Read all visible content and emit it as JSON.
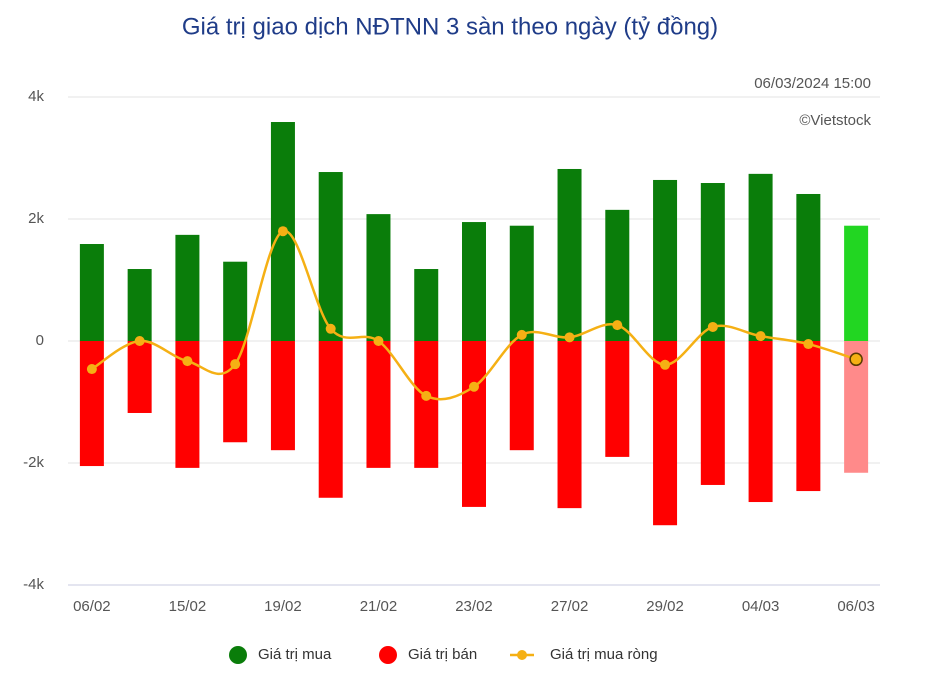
{
  "chart_data": {
    "type": "bar_line",
    "title": "Giá trị giao dịch NĐTNN 3 sàn theo ngày (tỷ đồng)",
    "timestamp": "06/03/2024 15:00",
    "source": "©Vietstock",
    "categories": [
      "06/02",
      null,
      "15/02",
      null,
      "19/02",
      null,
      "21/02",
      null,
      "23/02",
      null,
      "27/02",
      null,
      "29/02",
      null,
      "04/03",
      null,
      "06/03"
    ],
    "series": [
      {
        "name": "Giá trị mua",
        "type": "bar",
        "color": "#0a7d0a",
        "last_color": "#22d622",
        "values": [
          1590,
          1180,
          1740,
          1300,
          3590,
          2770,
          2080,
          1180,
          1950,
          1890,
          2820,
          2150,
          2640,
          2590,
          2740,
          2410,
          1890
        ]
      },
      {
        "name": "Giá trị bán",
        "type": "bar",
        "color": "#ff0000",
        "last_color": "#ff8a8a",
        "values": [
          -2050,
          -1180,
          -2080,
          -1660,
          -1790,
          -2570,
          -2080,
          -2080,
          -2720,
          -1790,
          -2740,
          -1900,
          -3020,
          -2360,
          -2640,
          -2460,
          -2160
        ]
      },
      {
        "name": "Giá trị mua ròng",
        "type": "line",
        "color": "#f5b014",
        "values": [
          -460,
          0,
          -330,
          -380,
          1800,
          200,
          0,
          -900,
          -750,
          100,
          60,
          260,
          -390,
          230,
          80,
          -50,
          -300
        ]
      }
    ],
    "ylim": [
      -4000,
      4000
    ],
    "yticks": [
      {
        "value": -4000,
        "label": "-4k"
      },
      {
        "value": -2000,
        "label": "-2k"
      },
      0,
      {
        "value": 2000,
        "label": "2k"
      },
      {
        "value": 4000,
        "label": "4k"
      }
    ],
    "grid": true,
    "legend": "bottom"
  }
}
